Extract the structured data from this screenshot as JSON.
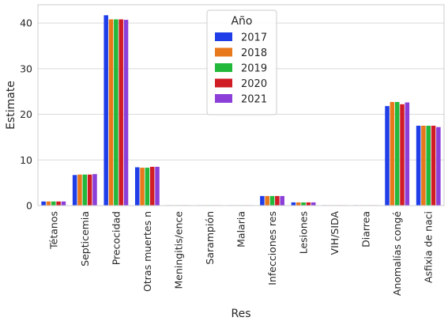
{
  "chart_data": {
    "type": "bar",
    "xlabel": "Res",
    "ylabel": "Estimate",
    "ylim": [
      0,
      44
    ],
    "yticks": [
      0,
      10,
      20,
      30,
      40
    ],
    "grid": "horizontal",
    "legend_title": "Año",
    "legend_position": "top-center",
    "categories": [
      "Tétanos",
      "Septicemia",
      "Precocidad",
      "Otras muertes n",
      "Meningitis/ence",
      "Sarampión",
      "Malaria",
      "Infecciones res",
      "Lesiones",
      "VIH/SIDA",
      "Diarrea",
      "Anomalías congé",
      "Asfixia de naci"
    ],
    "series": [
      {
        "name": "2017",
        "color": "#1f3ee8",
        "values": [
          0.9,
          6.7,
          41.7,
          8.4,
          0.1,
          0.1,
          0.1,
          2.1,
          0.7,
          0.1,
          0.1,
          21.8,
          17.5
        ]
      },
      {
        "name": "2018",
        "color": "#e8781c",
        "values": [
          0.9,
          6.8,
          40.8,
          8.3,
          0.1,
          0.1,
          0.1,
          2.1,
          0.7,
          0.1,
          0.1,
          22.7,
          17.5
        ]
      },
      {
        "name": "2019",
        "color": "#22b83a",
        "values": [
          0.9,
          6.8,
          40.8,
          8.3,
          0.1,
          0.1,
          0.1,
          2.1,
          0.7,
          0.1,
          0.1,
          22.7,
          17.5
        ]
      },
      {
        "name": "2020",
        "color": "#d01c25",
        "values": [
          0.9,
          6.8,
          40.8,
          8.5,
          0.1,
          0.1,
          0.1,
          2.1,
          0.7,
          0.1,
          0.1,
          22.2,
          17.5
        ]
      },
      {
        "name": "2021",
        "color": "#8c3fd8",
        "values": [
          0.9,
          6.9,
          40.7,
          8.5,
          0.1,
          0.1,
          0.1,
          2.1,
          0.7,
          0.1,
          0.1,
          22.6,
          17.2
        ]
      }
    ]
  }
}
